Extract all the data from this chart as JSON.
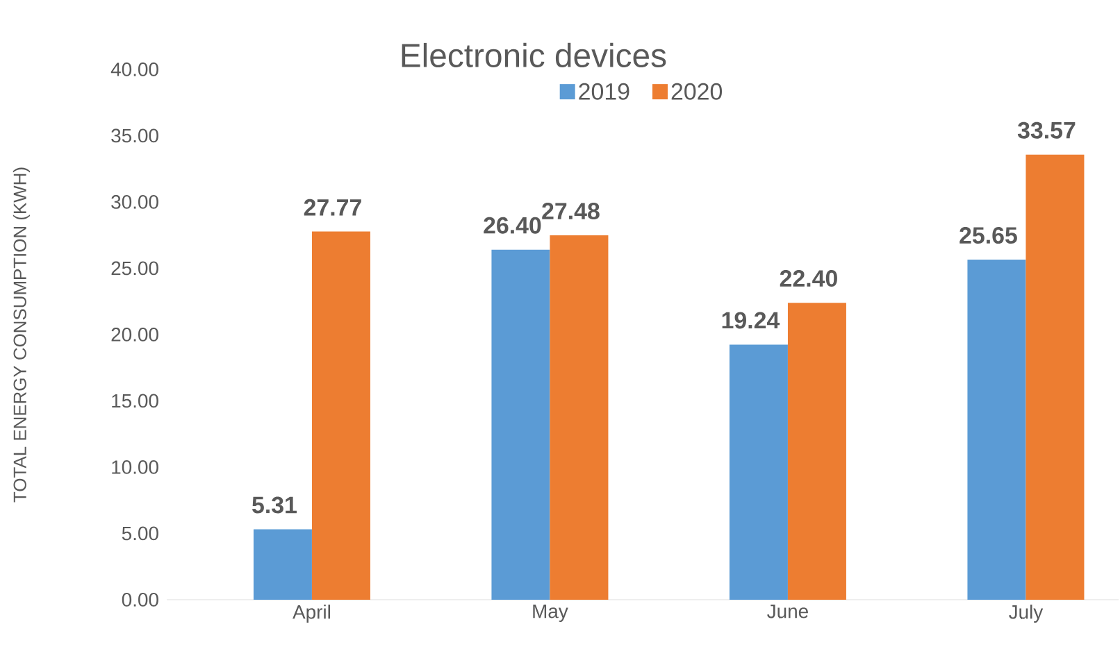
{
  "chart_data": {
    "type": "bar",
    "title": "Electronic devices",
    "ylabel": "TOTAL ENERGY CONSUMPTION (KWH)",
    "categories": [
      "April",
      "May",
      "June",
      "July"
    ],
    "series": [
      {
        "name": "2019",
        "color": "#5b9bd5",
        "values": [
          5.31,
          26.4,
          19.24,
          25.65
        ],
        "value_labels": [
          "5.31",
          "26.40",
          "19.24",
          "25.65"
        ]
      },
      {
        "name": "2020",
        "color": "#ed7d31",
        "values": [
          27.77,
          27.48,
          22.4,
          33.57
        ],
        "value_labels": [
          "27.77",
          "27.48",
          "22.40",
          "33.57"
        ]
      }
    ],
    "ylim": [
      0,
      40
    ],
    "yticks": [
      {
        "value": 0,
        "label": "0.00"
      },
      {
        "value": 5,
        "label": "5.00"
      },
      {
        "value": 10,
        "label": "10.00"
      },
      {
        "value": 15,
        "label": "15.00"
      },
      {
        "value": 20,
        "label": "20.00"
      },
      {
        "value": 25,
        "label": "25.00"
      },
      {
        "value": 30,
        "label": "30.00"
      },
      {
        "value": 35,
        "label": "35.00"
      },
      {
        "value": 40,
        "label": "40.00"
      }
    ],
    "legend": "top",
    "grid": false
  }
}
